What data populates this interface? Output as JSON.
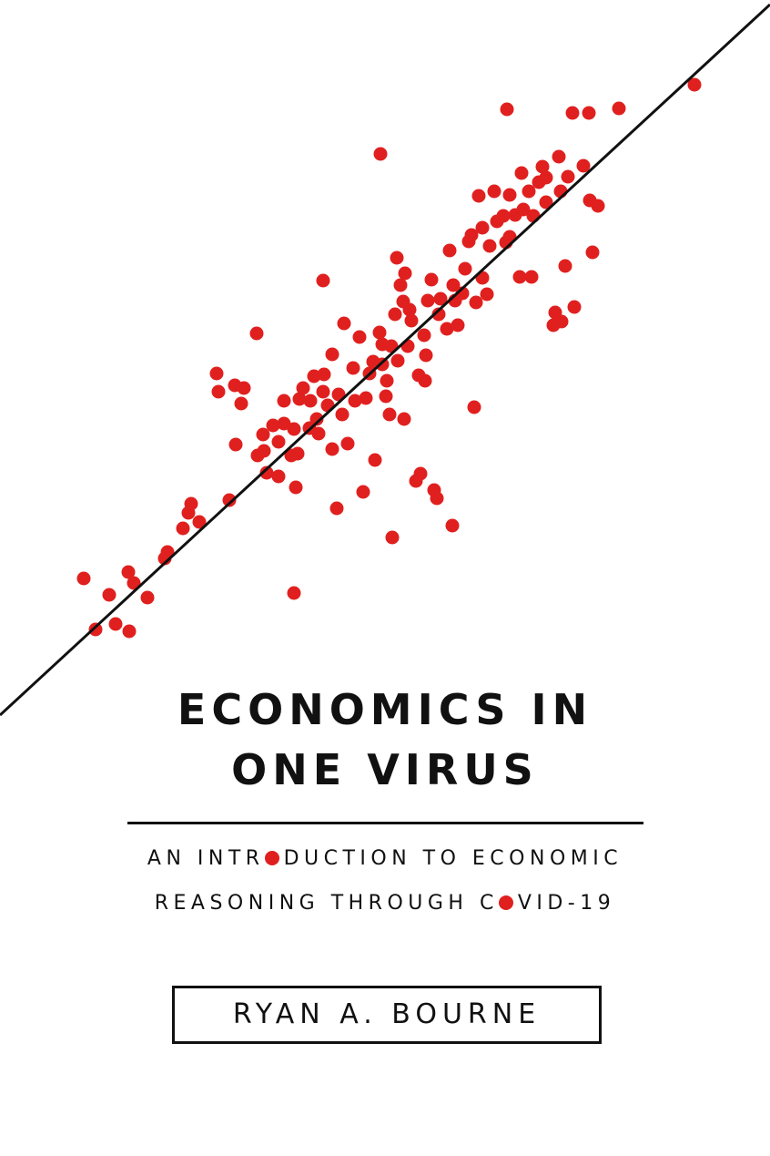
{
  "cover": {
    "title": [
      "ECONOMICS IN",
      "ONE VIRUS"
    ],
    "subtitle": [
      [
        "AN INTR",
        "O",
        "DUCTION TO ECONOMIC"
      ],
      [
        "REASONING THROUGH C",
        "O",
        "VID-19"
      ]
    ],
    "author": "RYAN A. BOURNE"
  }
}
